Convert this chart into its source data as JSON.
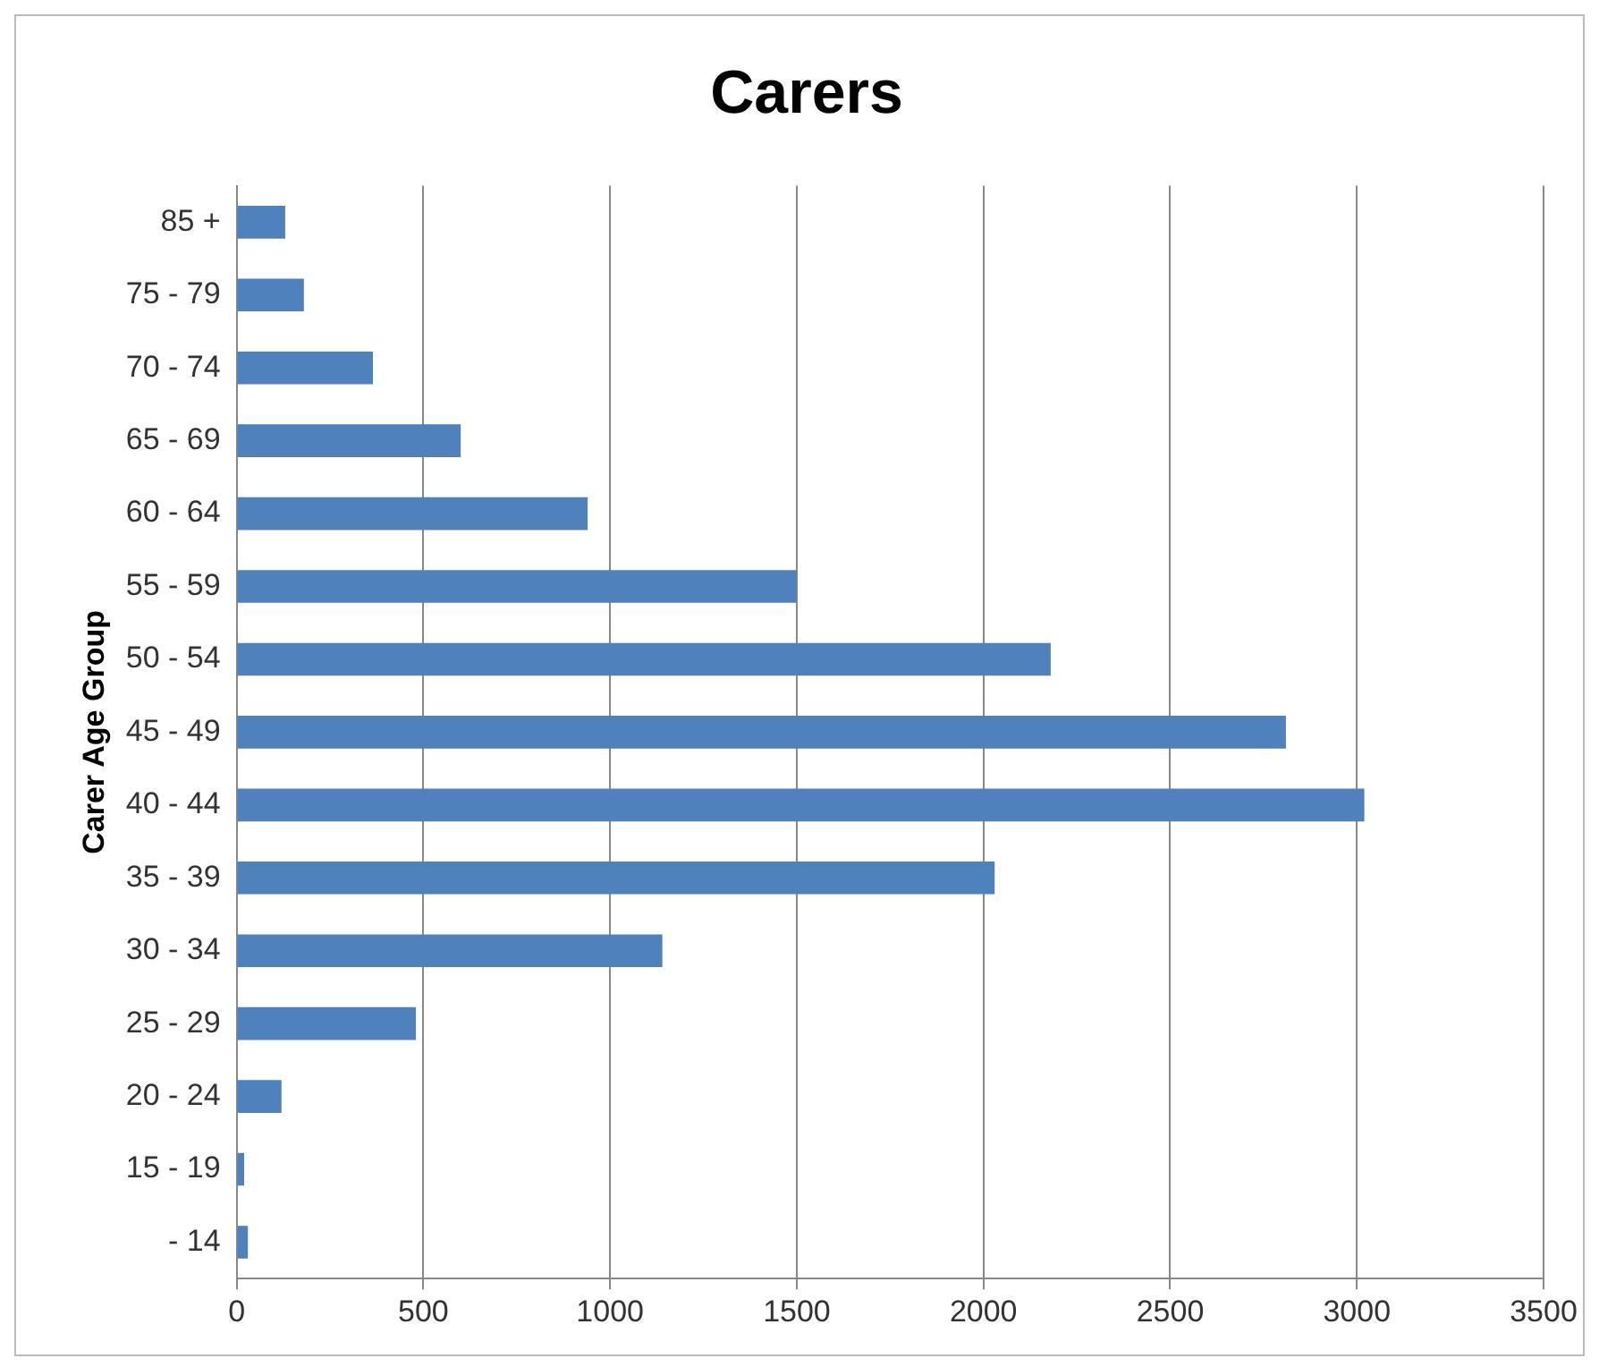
{
  "chart_data": {
    "type": "bar",
    "orientation": "horizontal",
    "title": "Carers",
    "ylabel": "Carer Age Group",
    "categories": [
      "85 +",
      "75 - 79",
      "70 - 74",
      "65 - 69",
      "60 - 64",
      "55 - 59",
      "50 - 54",
      "45 - 49",
      "40 - 44",
      "35 - 39",
      "30 - 34",
      "25 - 29",
      "20 - 24",
      "15 - 19",
      "- 14"
    ],
    "values": [
      130,
      180,
      365,
      600,
      940,
      1500,
      2180,
      2810,
      3020,
      2030,
      1140,
      480,
      120,
      20,
      30
    ],
    "color": "#4f81bd",
    "xlim": [
      0,
      3500
    ],
    "xticks": [
      0,
      500,
      1000,
      1500,
      2000,
      2500,
      3000,
      3500
    ],
    "grid": "x",
    "legend": false
  }
}
